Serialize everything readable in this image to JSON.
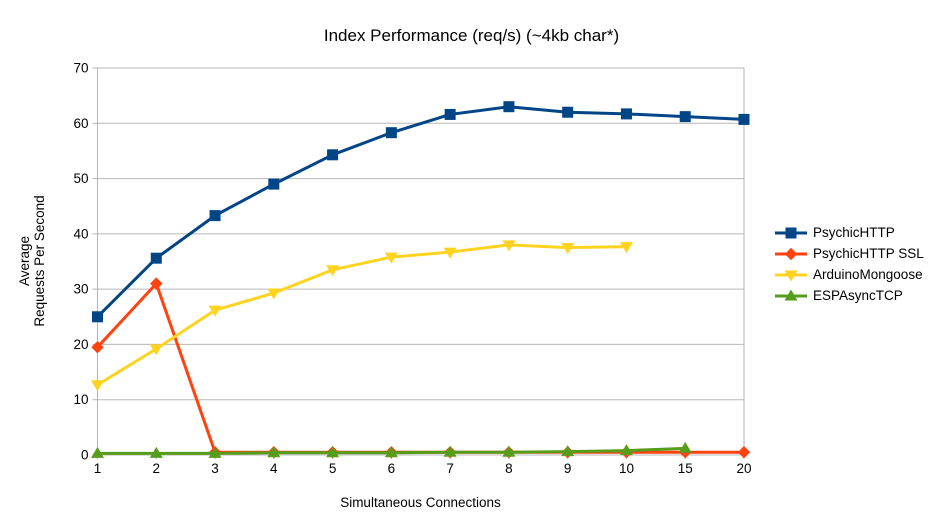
{
  "chart_data": {
    "type": "line",
    "title": "Index Performance (req/s) (~4kb char*)",
    "xlabel": "Simultaneous Connections",
    "ylabel": "Average Requests Per Second",
    "ylabel_lines": [
      "Average",
      "Requests Per Second"
    ],
    "categories": [
      "1",
      "2",
      "3",
      "4",
      "5",
      "6",
      "7",
      "8",
      "9",
      "10",
      "15",
      "20"
    ],
    "yticks": [
      0,
      10,
      20,
      30,
      40,
      50,
      60,
      70
    ],
    "ylim": [
      0,
      70
    ],
    "grid": "horizontal",
    "legend_position": "right",
    "series": [
      {
        "name": "PsychicHTTP",
        "color": "#004586",
        "marker": "square",
        "values": [
          25,
          35.6,
          43.3,
          49,
          54.3,
          58.3,
          61.6,
          63,
          62,
          61.7,
          61.2,
          60.7
        ]
      },
      {
        "name": "PsychicHTTP SSL",
        "color": "#FF420E",
        "marker": "diamond",
        "values": [
          19.5,
          31,
          0.5,
          0.5,
          0.5,
          0.5,
          0.5,
          0.5,
          0.5,
          0.5,
          0.5,
          0.5
        ]
      },
      {
        "name": "ArduinoMongoose",
        "color": "#FFD320",
        "marker": "triangle-down",
        "values": [
          12.7,
          19.2,
          26.2,
          29.3,
          33.5,
          35.8,
          36.7,
          38,
          37.5,
          37.7,
          null,
          null
        ]
      },
      {
        "name": "ESPAsyncTCP",
        "color": "#579D1C",
        "marker": "triangle-up",
        "values": [
          0.3,
          0.3,
          0.3,
          0.4,
          0.4,
          0.4,
          0.5,
          0.5,
          0.6,
          0.8,
          1.2,
          null
        ]
      }
    ]
  },
  "colors": {
    "background": "#FFFFFF",
    "grid": "#B8B8B8",
    "axis": "#B3B3B3",
    "text": "#000000"
  }
}
